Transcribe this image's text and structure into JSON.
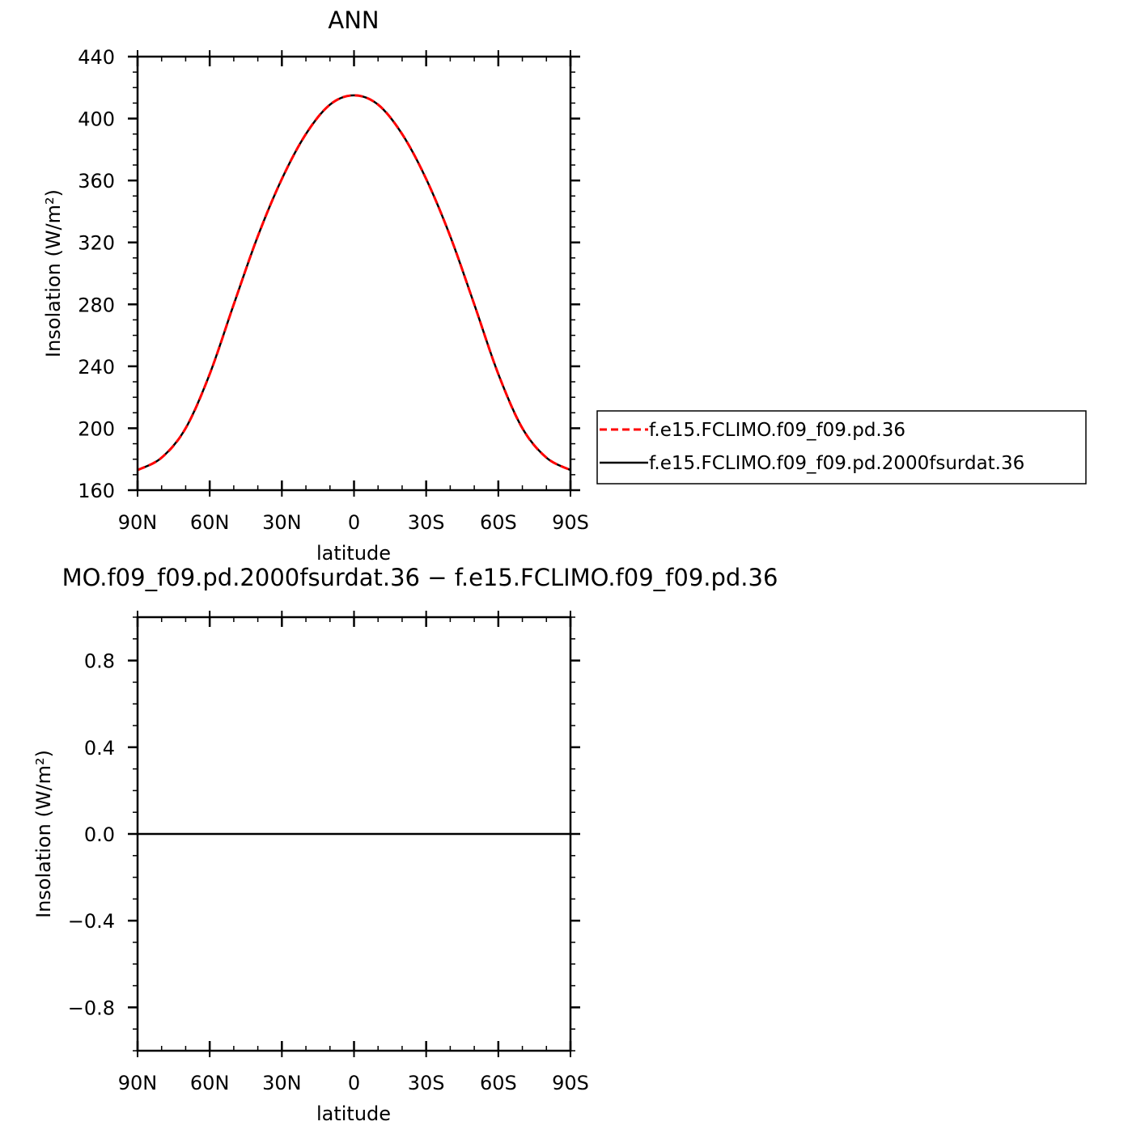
{
  "chart_data": [
    {
      "type": "line",
      "title": "ANN",
      "xlabel": "latitude",
      "ylabel": "Insolation (W/m²)",
      "ylim": [
        160,
        440
      ],
      "xlim": [
        -90,
        90
      ],
      "x_tick_labels": [
        "90N",
        "60N",
        "30N",
        "0",
        "30S",
        "60S",
        "90S"
      ],
      "y_tick_labels": [
        "160",
        "200",
        "240",
        "280",
        "320",
        "360",
        "400",
        "440"
      ],
      "legend_position": "right",
      "grid": false,
      "series": [
        {
          "name": "f.e15.FCLIMO.f09_f09.pd.36",
          "color": "#ff0000",
          "dash": "dashed",
          "x": [
            -90,
            -80,
            -70,
            -60,
            -50,
            -40,
            -30,
            -20,
            -10,
            0,
            10,
            20,
            30,
            40,
            50,
            60,
            70,
            80,
            90
          ],
          "values": [
            173,
            181,
            200,
            235,
            280,
            324,
            361,
            390,
            409,
            415,
            409,
            390,
            361,
            324,
            280,
            235,
            200,
            181,
            173
          ]
        },
        {
          "name": "f.e15.FCLIMO.f09_f09.pd.2000fsurdat.36",
          "color": "#000000",
          "dash": "solid",
          "x": [
            -90,
            -80,
            -70,
            -60,
            -50,
            -40,
            -30,
            -20,
            -10,
            0,
            10,
            20,
            30,
            40,
            50,
            60,
            70,
            80,
            90
          ],
          "values": [
            173,
            181,
            200,
            235,
            280,
            324,
            361,
            390,
            409,
            415,
            409,
            390,
            361,
            324,
            280,
            235,
            200,
            181,
            173
          ]
        }
      ]
    },
    {
      "type": "line",
      "title": "MO.f09_f09.pd.2000fsurdat.36 − f.e15.FCLIMO.f09_f09.pd.36",
      "xlabel": "latitude",
      "ylabel": "Insolation (W/m²)",
      "ylim": [
        -1,
        1
      ],
      "xlim": [
        -90,
        90
      ],
      "x_tick_labels": [
        "90N",
        "60N",
        "30N",
        "0",
        "30S",
        "60S",
        "90S"
      ],
      "y_tick_labels": [
        "−0.8",
        "−0.4",
        "0.0",
        "0.4",
        "0.8"
      ],
      "grid": false,
      "series": [
        {
          "color": "#000000",
          "dash": "solid",
          "x": [
            -90,
            -60,
            -30,
            0,
            30,
            60,
            90
          ],
          "values": [
            0,
            0,
            0,
            0,
            0,
            0,
            0
          ]
        }
      ]
    }
  ]
}
